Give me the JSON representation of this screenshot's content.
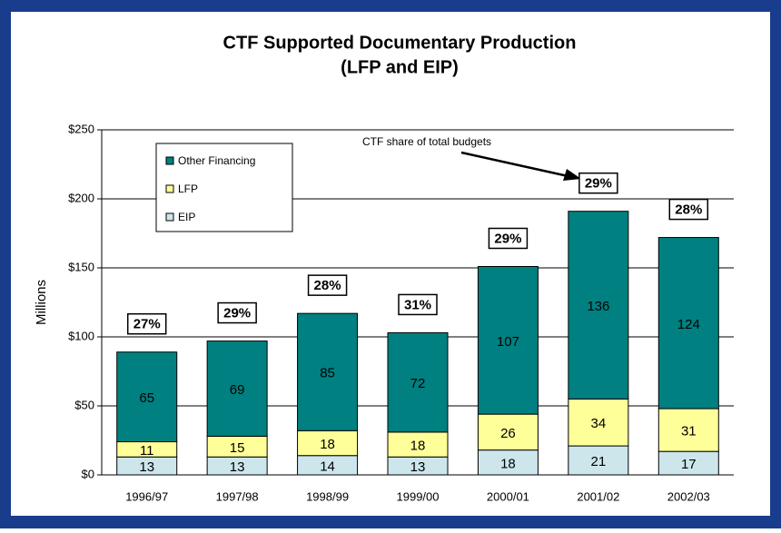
{
  "chart_data": {
    "type": "stacked_bar",
    "title": "CTF Supported Documentary Production",
    "subtitle": "(LFP and EIP)",
    "y_label": "Millions",
    "categories": [
      "1996/97",
      "1997/98",
      "1998/99",
      "1999/00",
      "2000/01",
      "2001/02",
      "2002/03"
    ],
    "series": [
      {
        "name": "EIP",
        "color": "#cce6ec",
        "values": [
          13,
          13,
          14,
          13,
          18,
          21,
          17
        ]
      },
      {
        "name": "LFP",
        "color": "#ffff99",
        "values": [
          11,
          15,
          18,
          18,
          26,
          34,
          31
        ]
      },
      {
        "name": "Other Financing",
        "color": "#008080",
        "values": [
          65,
          69,
          85,
          72,
          107,
          136,
          124
        ]
      }
    ],
    "share_labels": [
      "27%",
      "29%",
      "28%",
      "31%",
      "29%",
      "29%",
      "28%"
    ],
    "annotation": "CTF share of total budgets",
    "ylim": [
      0,
      250
    ],
    "yticks": [
      {
        "value": 0,
        "label": "$0"
      },
      {
        "value": 50,
        "label": "$50"
      },
      {
        "value": 100,
        "label": "$100"
      },
      {
        "value": 150,
        "label": "$150"
      },
      {
        "value": 200,
        "label": "$200"
      },
      {
        "value": 250,
        "label": "$250"
      }
    ],
    "grid": true,
    "legend": "upper left"
  }
}
